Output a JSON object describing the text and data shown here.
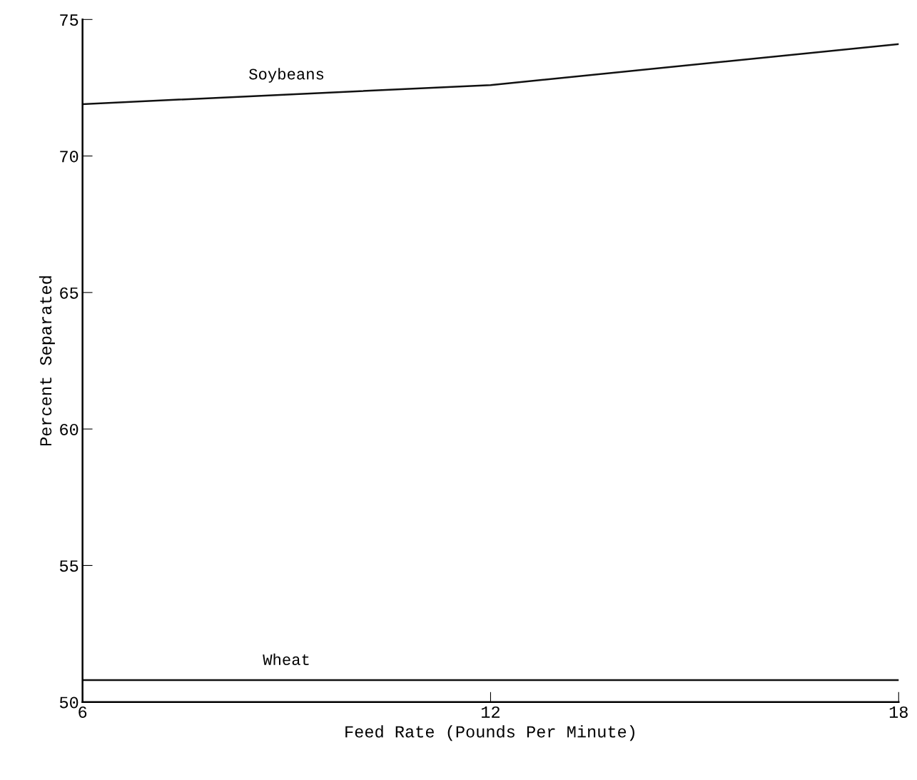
{
  "chart_data": {
    "type": "line",
    "xlabel": "Feed Rate (Pounds Per Minute)",
    "ylabel": "Percent Separated",
    "x": [
      6,
      12,
      18
    ],
    "series": [
      {
        "name": "Soybeans",
        "color": "#111111",
        "values": [
          71.9,
          72.6,
          74.1
        ]
      },
      {
        "name": "Wheat",
        "color": "#111111",
        "values": [
          50.8,
          50.8,
          50.8
        ]
      }
    ],
    "xlim": [
      6,
      18
    ],
    "ylim": [
      50,
      75
    ],
    "xticks": [
      6,
      12,
      18
    ],
    "yticks": [
      50,
      55,
      60,
      65,
      70,
      75
    ],
    "grid": false,
    "legend": false,
    "marker": "none",
    "line_style": "solid"
  }
}
